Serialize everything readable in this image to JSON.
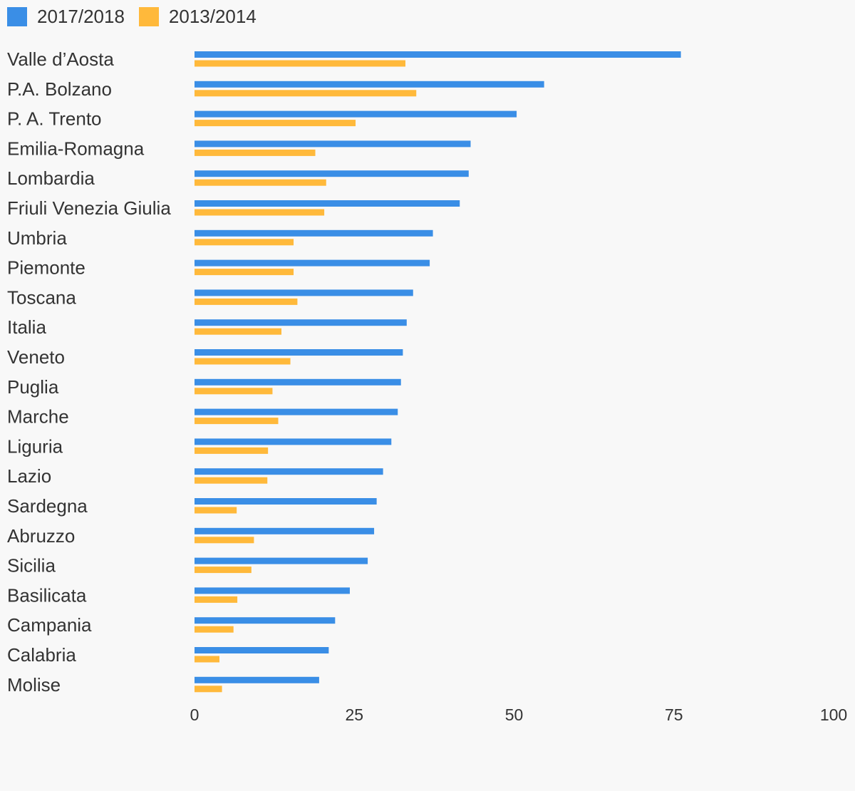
{
  "chart_data": {
    "type": "bar",
    "orientation": "horizontal",
    "categories": [
      "Valle d’Aosta",
      "P.A. Bolzano",
      "P. A. Trento",
      "Emilia-Romagna",
      "Lombardia",
      "Friuli Venezia Giulia",
      "Umbria",
      "Piemonte",
      "Toscana",
      "Italia",
      "Veneto",
      "Puglia",
      "Marche",
      "Liguria",
      "Lazio",
      "Sardegna",
      "Abruzzo",
      "Sicilia",
      "Basilicata",
      "Campania",
      "Calabria",
      "Molise"
    ],
    "series": [
      {
        "name": "2017/2018",
        "color": "#3a8ee6",
        "values": [
          76.1,
          54.7,
          50.4,
          43.2,
          42.9,
          41.5,
          37.3,
          36.8,
          34.2,
          33.2,
          32.6,
          32.3,
          31.8,
          30.8,
          29.5,
          28.5,
          28.1,
          27.1,
          24.3,
          22.0,
          21.0,
          19.5
        ]
      },
      {
        "name": "2013/2014",
        "color": "#ffb93b",
        "values": [
          33.0,
          34.7,
          25.2,
          18.9,
          20.6,
          20.3,
          15.5,
          15.5,
          16.1,
          13.6,
          15.0,
          12.2,
          13.1,
          11.5,
          11.4,
          6.6,
          9.3,
          8.9,
          6.7,
          6.1,
          3.9,
          4.3
        ]
      }
    ],
    "xlim": [
      0,
      100
    ],
    "xticks": [
      "0",
      "25",
      "50",
      "75",
      "100"
    ],
    "xtick_values": [
      0,
      25,
      50,
      75,
      100
    ],
    "legend_position": "top-left",
    "grid": false,
    "title": "",
    "xlabel": "",
    "ylabel": ""
  }
}
